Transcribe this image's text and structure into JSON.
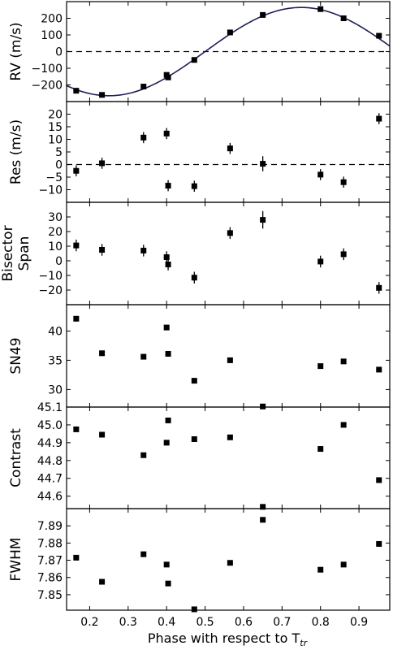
{
  "chart_data": {
    "type": "scatter",
    "xlabel": "Phase with respect to T",
    "xlabel_subscript": "tr",
    "xlim": [
      0.14,
      0.98
    ],
    "xticks": [
      0.2,
      0.3,
      0.4,
      0.5,
      0.6,
      0.7,
      0.8,
      0.9
    ],
    "xtick_labels": [
      "0.2",
      "0.3",
      "0.4",
      "0.5",
      "0.6",
      "0.7",
      "0.8",
      "0.9"
    ],
    "marker_color": "#000000",
    "curve_color": "#1f1f5a",
    "panels": [
      {
        "id": "rv",
        "ylabel": [
          "RV (m/s)"
        ],
        "ylim": [
          -300,
          300
        ],
        "yticks": [
          -200,
          -100,
          0,
          100,
          200
        ],
        "ytick_labels": [
          "−200",
          "−100",
          "0",
          "100",
          "200"
        ],
        "zero_line": true,
        "model_curve": {
          "amplitude": 265,
          "phase_of_maximum": 0.75
        },
        "x": [
          0.165,
          0.232,
          0.34,
          0.4,
          0.404,
          0.472,
          0.565,
          0.65,
          0.8,
          0.86,
          0.952
        ],
        "y": [
          -235,
          -260,
          -210,
          -140,
          -155,
          -50,
          115,
          220,
          255,
          200,
          95
        ],
        "err": [
          6,
          6,
          6,
          6,
          6,
          6,
          6,
          6,
          6,
          6,
          6
        ]
      },
      {
        "id": "res",
        "ylabel": [
          "Res (m/s)"
        ],
        "ylim": [
          -15,
          25
        ],
        "yticks": [
          -10,
          -5,
          0,
          5,
          10,
          15,
          20
        ],
        "ytick_labels": [
          "−10",
          "−5",
          "0",
          "5",
          "10",
          "15",
          "20"
        ],
        "zero_line": true,
        "x": [
          0.165,
          0.232,
          0.34,
          0.4,
          0.404,
          0.472,
          0.565,
          0.65,
          0.8,
          0.86,
          0.952
        ],
        "y": [
          -2.5,
          0.5,
          10.7,
          12.3,
          -8.4,
          -8.6,
          6.4,
          0.3,
          -4.0,
          -7.0,
          18.2
        ],
        "err": [
          2.2,
          2.2,
          2.2,
          2.2,
          2.2,
          2.2,
          2.2,
          3.0,
          2.2,
          2.2,
          2.2
        ]
      },
      {
        "id": "bis",
        "ylabel": [
          "Bisector",
          "Span"
        ],
        "ylim": [
          -30,
          40
        ],
        "yticks": [
          -20,
          -10,
          0,
          10,
          20,
          30
        ],
        "ytick_labels": [
          "−20",
          "−10",
          "0",
          "10",
          "20",
          "30"
        ],
        "zero_line": false,
        "x": [
          0.165,
          0.232,
          0.34,
          0.4,
          0.404,
          0.472,
          0.565,
          0.65,
          0.8,
          0.86,
          0.952
        ],
        "y": [
          10.5,
          7.5,
          7.0,
          2.5,
          -2.5,
          -11.5,
          19.0,
          28.0,
          -0.5,
          4.5,
          -18.5
        ],
        "err": [
          4.0,
          4.0,
          4.0,
          4.0,
          4.0,
          4.0,
          4.0,
          6.0,
          4.0,
          4.0,
          4.0
        ]
      },
      {
        "id": "sn",
        "ylabel": [
          "SN49"
        ],
        "ylim": [
          27.0,
          44.5
        ],
        "yticks": [
          30,
          35,
          40
        ],
        "ytick_labels": [
          "30",
          "35",
          "40"
        ],
        "zero_line": false,
        "x": [
          0.165,
          0.232,
          0.34,
          0.4,
          0.404,
          0.472,
          0.565,
          0.65,
          0.8,
          0.86,
          0.952
        ],
        "y": [
          42.1,
          36.2,
          35.6,
          40.6,
          36.1,
          31.5,
          35.0,
          27.1,
          34.0,
          34.8,
          33.4
        ]
      },
      {
        "id": "con",
        "ylabel": [
          "Contrast"
        ],
        "ylim": [
          44.53,
          45.1
        ],
        "yticks": [
          44.6,
          44.7,
          44.8,
          44.9,
          45.0,
          45.1
        ],
        "ytick_labels": [
          "44.6",
          "44.7",
          "44.8",
          "44.9",
          "45.0",
          "45.1"
        ],
        "zero_line": false,
        "x": [
          0.165,
          0.232,
          0.34,
          0.4,
          0.404,
          0.472,
          0.565,
          0.65,
          0.8,
          0.86,
          0.952
        ],
        "y": [
          44.975,
          44.945,
          44.83,
          44.9,
          45.025,
          44.92,
          44.93,
          44.54,
          44.865,
          45.0,
          44.69
        ]
      },
      {
        "id": "fwhm",
        "ylabel": [
          "FWHM"
        ],
        "ylim": [
          7.841,
          7.9
        ],
        "yticks": [
          7.85,
          7.86,
          7.87,
          7.88,
          7.89
        ],
        "ytick_labels": [
          "7.85",
          "7.86",
          "7.87",
          "7.88",
          "7.89"
        ],
        "zero_line": false,
        "x": [
          0.165,
          0.232,
          0.34,
          0.4,
          0.404,
          0.472,
          0.565,
          0.65,
          0.8,
          0.86,
          0.952
        ],
        "y": [
          7.8715,
          7.8575,
          7.8735,
          7.8675,
          7.8565,
          7.8415,
          7.8685,
          7.8935,
          7.8645,
          7.8675,
          7.8795
        ]
      }
    ]
  }
}
